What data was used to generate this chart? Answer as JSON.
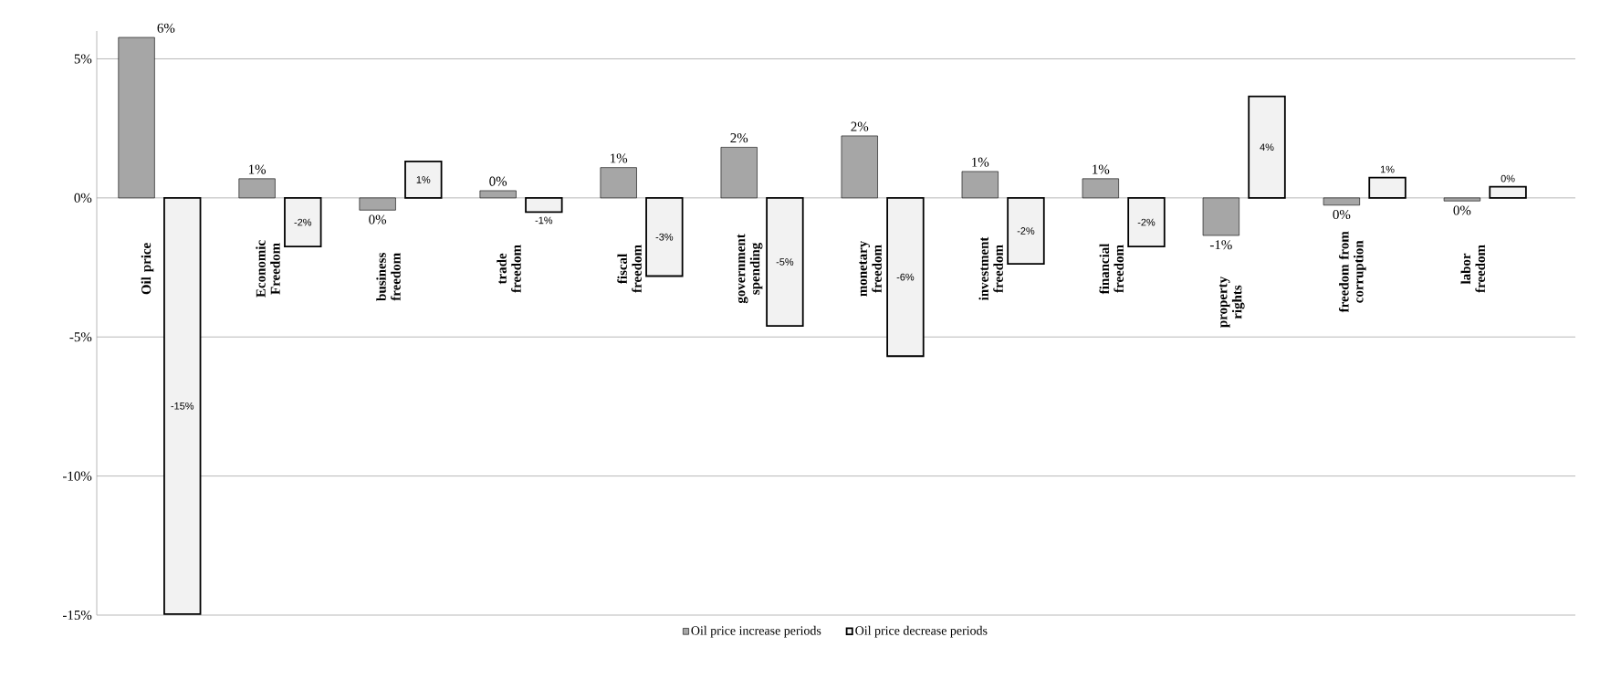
{
  "chart_data": {
    "type": "bar",
    "categories": [
      "Oil price",
      "Economic Freedom",
      "business freedom",
      "trade freedom",
      "fiscal freedom",
      "government spending",
      "monetary freedom",
      "investment freedom",
      "financial freedom",
      "property rights",
      "freedom from corruption",
      "labor freedom"
    ],
    "series": [
      {
        "name": "Oil price increase periods",
        "color": "#a6a6a6",
        "values": [
          5.77,
          0.69,
          -0.44,
          0.26,
          1.09,
          1.82,
          2.23,
          0.95,
          0.69,
          -1.35,
          -0.26,
          -0.11
        ],
        "value_labels": [
          "6%",
          "1%",
          "0%",
          "0%",
          "1%",
          "2%",
          "2%",
          "1%",
          "1%",
          "-1%",
          "0%",
          "0%"
        ]
      },
      {
        "name": "Oil price decrease periods",
        "color": "#f2f2f2",
        "values": [
          -14.96,
          -1.75,
          1.31,
          -0.51,
          -2.81,
          -4.6,
          -5.69,
          -2.37,
          -1.75,
          3.65,
          0.73,
          0.4
        ],
        "value_labels": [
          "-15%",
          "-2%",
          "1%",
          "-1%",
          "-3%",
          "-5%",
          "-6%",
          "-2%",
          "-2%",
          "4%",
          "1%",
          "0%"
        ]
      }
    ],
    "yticks": [
      {
        "value": -15,
        "label": "-15%"
      },
      {
        "value": -10,
        "label": "-10%"
      },
      {
        "value": -5,
        "label": "-5%"
      },
      {
        "value": 0,
        "label": "0%"
      },
      {
        "value": 5,
        "label": "5%"
      }
    ],
    "ylim": [
      -15,
      6
    ],
    "grid": "y",
    "legend": "bottom"
  }
}
